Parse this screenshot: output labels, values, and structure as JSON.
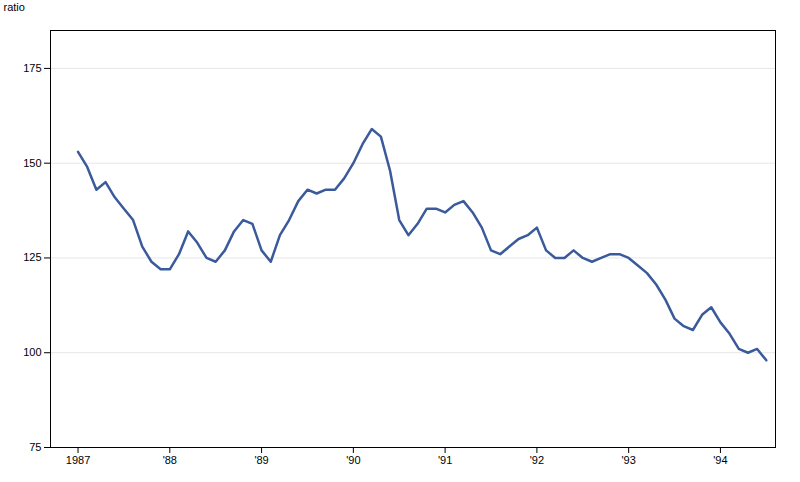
{
  "chart_data": {
    "type": "line",
    "ylabel": "ratio",
    "color": "#3a5a9b",
    "grid": true,
    "xlim": [
      1986.7,
      1994.6
    ],
    "xticks": [
      1987,
      {
        "value": 1988,
        "label": "'88"
      },
      {
        "value": 1989,
        "label": "'89"
      },
      {
        "value": 1990,
        "label": "'90"
      },
      {
        "value": 1991,
        "label": "'91"
      },
      {
        "value": 1992,
        "label": "'92"
      },
      {
        "value": 1993,
        "label": "'93"
      },
      {
        "value": 1994,
        "label": "'94"
      }
    ],
    "ylim": [
      75,
      185
    ],
    "yticks": [
      75,
      100,
      125,
      150,
      175
    ],
    "x": [
      1987.0,
      1987.1,
      1987.2,
      1987.3,
      1987.4,
      1987.5,
      1987.6,
      1987.7,
      1987.8,
      1987.9,
      1988.0,
      1988.1,
      1988.2,
      1988.3,
      1988.4,
      1988.5,
      1988.6,
      1988.7,
      1988.8,
      1988.9,
      1989.0,
      1989.1,
      1989.2,
      1989.3,
      1989.4,
      1989.5,
      1989.6,
      1989.7,
      1989.8,
      1989.9,
      1990.0,
      1990.1,
      1990.2,
      1990.3,
      1990.4,
      1990.5,
      1990.6,
      1990.7,
      1990.8,
      1990.9,
      1991.0,
      1991.1,
      1991.2,
      1991.3,
      1991.4,
      1991.5,
      1991.6,
      1991.7,
      1991.8,
      1991.9,
      1992.0,
      1992.1,
      1992.2,
      1992.3,
      1992.4,
      1992.5,
      1992.6,
      1992.7,
      1992.8,
      1992.9,
      1993.0,
      1993.1,
      1993.2,
      1993.3,
      1993.4,
      1993.5,
      1993.6,
      1993.7,
      1993.8,
      1993.9,
      1994.0,
      1994.1,
      1994.2,
      1994.3,
      1994.4,
      1994.5
    ],
    "values": [
      153,
      149,
      143,
      145,
      141,
      138,
      135,
      128,
      124,
      122,
      122,
      126,
      132,
      129,
      125,
      124,
      127,
      132,
      135,
      134,
      127,
      124,
      131,
      135,
      140,
      143,
      142,
      143,
      143,
      146,
      150,
      155,
      159,
      157,
      148,
      135,
      131,
      134,
      138,
      138,
      137,
      139,
      140,
      137,
      133,
      127,
      126,
      128,
      130,
      131,
      133,
      127,
      125,
      125,
      127,
      125,
      124,
      125,
      126,
      126,
      125,
      123,
      121,
      118,
      114,
      109,
      107,
      106,
      110,
      112,
      108,
      105,
      101,
      100,
      101,
      98
    ]
  }
}
